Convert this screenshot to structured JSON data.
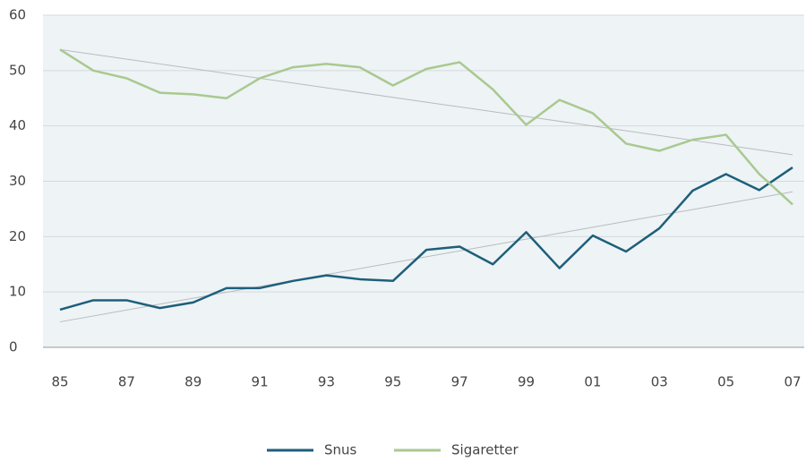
{
  "chart_data": {
    "type": "line",
    "categories": [
      "85",
      null,
      "87",
      null,
      "89",
      null,
      "91",
      null,
      "93",
      null,
      "95",
      null,
      "97",
      null,
      "99",
      null,
      "01",
      null,
      "03",
      null,
      "05",
      null,
      "07"
    ],
    "series": [
      {
        "name": "Snus",
        "color": "#1d5f7a",
        "values": [
          6.8,
          8.5,
          8.5,
          7.1,
          8.1,
          10.7,
          10.7,
          12,
          13,
          12.3,
          12,
          17.6,
          18.2,
          15,
          20.8,
          14.3,
          20.2,
          17.3,
          21.5,
          28.3,
          31.3,
          28.4,
          32.5
        ]
      },
      {
        "name": "Sigaretter",
        "color": "#a9c98f",
        "values": [
          53.8,
          50,
          48.6,
          46,
          45.7,
          45,
          48.6,
          50.6,
          51.2,
          50.6,
          47.3,
          50.3,
          51.5,
          46.6,
          40.2,
          44.7,
          42.3,
          36.8,
          35.5,
          37.5,
          38.4,
          31.3,
          25.8
        ]
      }
    ],
    "trend_lines": [
      {
        "color": "#b8bcbf",
        "start": 4.6,
        "end": 28.1
      },
      {
        "color": "#b8bcbf",
        "start": 53.8,
        "end": 34.8
      }
    ],
    "ylim": [
      0,
      60
    ],
    "yticks": [
      0,
      10,
      20,
      30,
      40,
      50,
      60
    ],
    "grid": true
  }
}
